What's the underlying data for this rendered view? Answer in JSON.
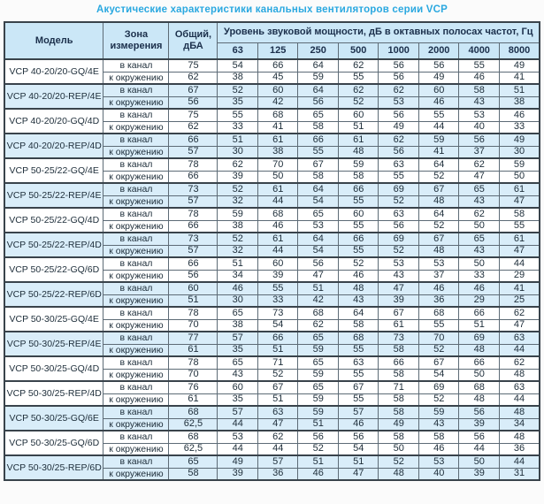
{
  "title": "Акустические характеристики канальных вентиляторов  серии VCP",
  "table": {
    "headers": {
      "model": "Модель",
      "zone": "Зона измерения",
      "total": "Общий, дБА",
      "freq_title": "Уровень звуковой мощности, дБ в октавных полосах частот, Гц"
    },
    "freq_labels": [
      "63",
      "125",
      "250",
      "500",
      "1000",
      "2000",
      "4000",
      "8000"
    ],
    "zone_labels": {
      "duct": "в канал",
      "surround": "к окружению"
    },
    "colors": {
      "title_accent": "#2aa8e0",
      "header_bg": "#cbe7f7",
      "shaded_row_bg": "#d9edf9",
      "border": "#5d6b76"
    },
    "models": [
      {
        "name": "VCP 40-20/20-GQ/4E",
        "shaded": false,
        "rows": [
          {
            "zone": "в канал",
            "total": "75",
            "values": [
              54,
              66,
              64,
              62,
              56,
              56,
              55,
              49
            ]
          },
          {
            "zone": "к окружению",
            "total": "62",
            "values": [
              38,
              45,
              59,
              55,
              56,
              49,
              46,
              41
            ]
          }
        ]
      },
      {
        "name": "VCP 40-20/20-REP/4E",
        "shaded": true,
        "rows": [
          {
            "zone": "в канал",
            "total": "67",
            "values": [
              52,
              60,
              64,
              62,
              62,
              60,
              58,
              51
            ]
          },
          {
            "zone": "к окружению",
            "total": "56",
            "values": [
              35,
              42,
              56,
              52,
              53,
              46,
              43,
              38
            ]
          }
        ]
      },
      {
        "name": "VCP 40-20/20-GQ/4D",
        "shaded": false,
        "rows": [
          {
            "zone": "в канал",
            "total": "75",
            "values": [
              55,
              68,
              65,
              60,
              56,
              55,
              53,
              46
            ]
          },
          {
            "zone": "к окружению",
            "total": "62",
            "values": [
              33,
              41,
              58,
              51,
              49,
              44,
              40,
              33
            ]
          }
        ]
      },
      {
        "name": "VCP 40-20/20-REP/4D",
        "shaded": true,
        "rows": [
          {
            "zone": "в канал",
            "total": "66",
            "values": [
              51,
              61,
              66,
              61,
              62,
              59,
              56,
              49
            ]
          },
          {
            "zone": "к окружению",
            "total": "57",
            "values": [
              30,
              38,
              55,
              48,
              56,
              41,
              37,
              30
            ]
          }
        ]
      },
      {
        "name": "VCP 50-25/22-GQ/4E",
        "shaded": false,
        "rows": [
          {
            "zone": "в канал",
            "total": "78",
            "values": [
              62,
              70,
              67,
              59,
              63,
              64,
              62,
              59
            ]
          },
          {
            "zone": "к окружению",
            "total": "66",
            "values": [
              39,
              50,
              58,
              58,
              55,
              52,
              47,
              50
            ]
          }
        ]
      },
      {
        "name": "VCP 50-25/22-REP/4E",
        "shaded": true,
        "rows": [
          {
            "zone": "в канал",
            "total": "73",
            "values": [
              52,
              61,
              64,
              66,
              69,
              67,
              65,
              61
            ]
          },
          {
            "zone": "к окружению",
            "total": "57",
            "values": [
              32,
              44,
              54,
              55,
              52,
              48,
              43,
              47
            ]
          }
        ]
      },
      {
        "name": "VCP 50-25/22-GQ/4D",
        "shaded": false,
        "rows": [
          {
            "zone": "в канал",
            "total": "78",
            "values": [
              59,
              68,
              65,
              60,
              63,
              64,
              62,
              58
            ]
          },
          {
            "zone": "к окружению",
            "total": "66",
            "values": [
              38,
              46,
              53,
              55,
              56,
              52,
              50,
              55
            ]
          }
        ]
      },
      {
        "name": "VCP 50-25/22-REP/4D",
        "shaded": true,
        "rows": [
          {
            "zone": "в канал",
            "total": "73",
            "values": [
              52,
              61,
              64,
              66,
              69,
              67,
              65,
              61
            ]
          },
          {
            "zone": "к окружению",
            "total": "57",
            "values": [
              32,
              44,
              54,
              55,
              52,
              48,
              43,
              47
            ]
          }
        ]
      },
      {
        "name": "VCP 50-25/22-GQ/6D",
        "shaded": false,
        "rows": [
          {
            "zone": "в канал",
            "total": "66",
            "values": [
              51,
              60,
              56,
              52,
              53,
              53,
              50,
              44
            ]
          },
          {
            "zone": "к окружению",
            "total": "56",
            "values": [
              34,
              39,
              47,
              46,
              43,
              37,
              33,
              29
            ]
          }
        ]
      },
      {
        "name": "VCP 50-25/22-REP/6D",
        "shaded": true,
        "rows": [
          {
            "zone": "в канал",
            "total": "60",
            "values": [
              46,
              55,
              51,
              48,
              47,
              46,
              46,
              41
            ]
          },
          {
            "zone": "к окружению",
            "total": "51",
            "values": [
              30,
              33,
              42,
              43,
              39,
              36,
              29,
              25
            ]
          }
        ]
      },
      {
        "name": "VCP 50-30/25-GQ/4E",
        "shaded": false,
        "rows": [
          {
            "zone": "в канал",
            "total": "78",
            "values": [
              65,
              73,
              68,
              64,
              67,
              68,
              66,
              62
            ]
          },
          {
            "zone": "к окружению",
            "total": "70",
            "values": [
              38,
              54,
              62,
              58,
              61,
              55,
              51,
              47
            ]
          }
        ]
      },
      {
        "name": "VCP 50-30/25-REP/4E",
        "shaded": true,
        "rows": [
          {
            "zone": "в канал",
            "total": "77",
            "values": [
              57,
              66,
              65,
              68,
              73,
              70,
              69,
              63
            ]
          },
          {
            "zone": "к окружению",
            "total": "61",
            "values": [
              35,
              51,
              59,
              55,
              58,
              52,
              48,
              44
            ]
          }
        ]
      },
      {
        "name": "VCP 50-30/25-GQ/4D",
        "shaded": false,
        "rows": [
          {
            "zone": "в канал",
            "total": "78",
            "values": [
              65,
              71,
              65,
              63,
              66,
              67,
              66,
              62
            ]
          },
          {
            "zone": "к окружению",
            "total": "70",
            "values": [
              43,
              52,
              59,
              55,
              58,
              54,
              50,
              48
            ]
          }
        ]
      },
      {
        "name": "VCP 50-30/25-REP/4D",
        "shaded": false,
        "rows": [
          {
            "zone": "в канал",
            "total": "76",
            "values": [
              60,
              67,
              65,
              67,
              71,
              69,
              68,
              63
            ]
          },
          {
            "zone": "к окружению",
            "total": "61",
            "values": [
              35,
              51,
              59,
              55,
              58,
              52,
              48,
              44
            ]
          }
        ]
      },
      {
        "name": "VCP 50-30/25-GQ/6E",
        "shaded": true,
        "rows": [
          {
            "zone": "в канал",
            "total": "68",
            "values": [
              57,
              63,
              59,
              57,
              58,
              59,
              56,
              48
            ]
          },
          {
            "zone": "к окружению",
            "total": "62,5",
            "values": [
              44,
              47,
              51,
              46,
              49,
              43,
              39,
              34
            ]
          }
        ]
      },
      {
        "name": "VCP 50-30/25-GQ/6D",
        "shaded": false,
        "rows": [
          {
            "zone": "в канал",
            "total": "68",
            "values": [
              53,
              62,
              56,
              56,
              58,
              58,
              56,
              48
            ]
          },
          {
            "zone": "к окружению",
            "total": "62,5",
            "values": [
              44,
              44,
              52,
              54,
              50,
              46,
              44,
              36
            ]
          }
        ]
      },
      {
        "name": "VCP 50-30/25-REP/6D",
        "shaded": true,
        "rows": [
          {
            "zone": "в канал",
            "total": "65",
            "values": [
              49,
              57,
              51,
              51,
              52,
              53,
              50,
              44
            ]
          },
          {
            "zone": "к окружению",
            "total": "58",
            "values": [
              39,
              36,
              46,
              47,
              48,
              40,
              39,
              31
            ]
          }
        ]
      }
    ]
  }
}
